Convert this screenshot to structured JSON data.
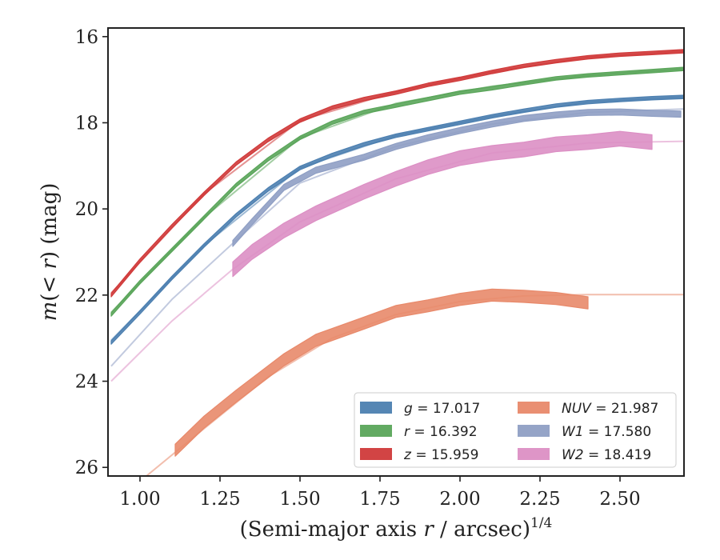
{
  "chart_data": {
    "type": "line",
    "xlabel": "(Semi-major axis r / arcsec)^1/4",
    "ylabel": "m(< r) (mag)",
    "xlim": [
      0.9,
      2.7
    ],
    "ylim": [
      26.2,
      15.8
    ],
    "y_inverted": true,
    "xticks": [
      "1.00",
      "1.25",
      "1.50",
      "1.75",
      "2.00",
      "2.25",
      "2.50"
    ],
    "xtick_values": [
      1.0,
      1.25,
      1.5,
      1.75,
      2.0,
      2.25,
      2.5
    ],
    "yticks": [
      "16",
      "18",
      "20",
      "22",
      "24",
      "26"
    ],
    "ytick_values": [
      16,
      18,
      20,
      22,
      24,
      26
    ],
    "grid": false,
    "legend_position": "lower-right",
    "legend_columns": 2,
    "series": [
      {
        "name": "g = 17.017",
        "band": "g",
        "total_mag": "17.017",
        "color": "#4c7fb0",
        "band_width": 0.08,
        "data": [
          [
            0.91,
            23.1
          ],
          [
            1.0,
            22.4
          ],
          [
            1.1,
            21.6
          ],
          [
            1.2,
            20.85
          ],
          [
            1.3,
            20.15
          ],
          [
            1.4,
            19.55
          ],
          [
            1.5,
            19.05
          ],
          [
            1.6,
            18.75
          ],
          [
            1.7,
            18.5
          ],
          [
            1.8,
            18.3
          ],
          [
            1.9,
            18.15
          ],
          [
            2.0,
            18.0
          ],
          [
            2.1,
            17.85
          ],
          [
            2.2,
            17.72
          ],
          [
            2.3,
            17.6
          ],
          [
            2.4,
            17.52
          ],
          [
            2.5,
            17.47
          ],
          [
            2.6,
            17.43
          ],
          [
            2.7,
            17.4
          ]
        ],
        "model": [
          [
            0.91,
            23.05
          ],
          [
            1.2,
            20.85
          ],
          [
            1.5,
            19.05
          ],
          [
            1.8,
            18.3
          ],
          [
            2.1,
            17.85
          ],
          [
            2.4,
            17.52
          ],
          [
            2.7,
            17.4
          ]
        ]
      },
      {
        "name": "r = 16.392",
        "band": "r",
        "total_mag": "16.392",
        "color": "#5aa55a",
        "band_width": 0.08,
        "data": [
          [
            0.91,
            22.45
          ],
          [
            1.0,
            21.7
          ],
          [
            1.1,
            20.95
          ],
          [
            1.2,
            20.2
          ],
          [
            1.3,
            19.45
          ],
          [
            1.4,
            18.85
          ],
          [
            1.5,
            18.35
          ],
          [
            1.6,
            18.0
          ],
          [
            1.7,
            17.75
          ],
          [
            1.8,
            17.6
          ],
          [
            1.9,
            17.45
          ],
          [
            2.0,
            17.3
          ],
          [
            2.1,
            17.2
          ],
          [
            2.2,
            17.08
          ],
          [
            2.3,
            16.97
          ],
          [
            2.4,
            16.9
          ],
          [
            2.5,
            16.85
          ],
          [
            2.6,
            16.8
          ],
          [
            2.7,
            16.75
          ]
        ],
        "model": [
          [
            0.91,
            22.4
          ],
          [
            1.2,
            20.2
          ],
          [
            1.5,
            18.35
          ],
          [
            1.8,
            17.55
          ],
          [
            2.1,
            17.15
          ],
          [
            2.4,
            16.9
          ],
          [
            2.7,
            16.75
          ]
        ]
      },
      {
        "name": "z = 15.959",
        "band": "z",
        "total_mag": "15.959",
        "color": "#d03a3a",
        "band_width": 0.08,
        "data": [
          [
            0.91,
            22.0
          ],
          [
            1.0,
            21.2
          ],
          [
            1.1,
            20.4
          ],
          [
            1.2,
            19.65
          ],
          [
            1.3,
            18.95
          ],
          [
            1.4,
            18.4
          ],
          [
            1.5,
            17.95
          ],
          [
            1.6,
            17.65
          ],
          [
            1.7,
            17.45
          ],
          [
            1.8,
            17.3
          ],
          [
            1.9,
            17.12
          ],
          [
            2.0,
            16.98
          ],
          [
            2.1,
            16.82
          ],
          [
            2.2,
            16.68
          ],
          [
            2.3,
            16.57
          ],
          [
            2.4,
            16.48
          ],
          [
            2.5,
            16.42
          ],
          [
            2.6,
            16.38
          ],
          [
            2.7,
            16.34
          ]
        ],
        "model": [
          [
            0.91,
            21.95
          ],
          [
            1.2,
            19.65
          ],
          [
            1.5,
            17.95
          ],
          [
            1.8,
            17.28
          ],
          [
            2.1,
            16.82
          ],
          [
            2.4,
            16.48
          ],
          [
            2.7,
            16.34
          ]
        ]
      },
      {
        "name": "NUV = 21.987",
        "band": "NUV",
        "total_mag": "21.987",
        "color": "#e8896a",
        "band_width": 0.28,
        "data": [
          [
            1.11,
            25.6
          ],
          [
            1.2,
            24.95
          ],
          [
            1.3,
            24.35
          ],
          [
            1.45,
            23.5
          ],
          [
            1.55,
            23.05
          ],
          [
            1.7,
            22.65
          ],
          [
            1.8,
            22.38
          ],
          [
            1.9,
            22.25
          ],
          [
            2.0,
            22.1
          ],
          [
            2.1,
            22.0
          ],
          [
            2.2,
            22.03
          ],
          [
            2.3,
            22.08
          ],
          [
            2.4,
            22.18
          ]
        ],
        "model": [
          [
            1.02,
            26.2
          ],
          [
            1.2,
            25.1
          ],
          [
            1.4,
            23.9
          ],
          [
            1.6,
            23.0
          ],
          [
            1.8,
            22.45
          ],
          [
            2.0,
            22.15
          ],
          [
            2.2,
            22.02
          ],
          [
            2.4,
            21.99
          ],
          [
            2.7,
            21.99
          ]
        ]
      },
      {
        "name": "W1 = 17.580",
        "band": "W1",
        "total_mag": "17.580",
        "color": "#8f9fc4",
        "band_width": 0.14,
        "data": [
          [
            1.29,
            20.8
          ],
          [
            1.35,
            20.3
          ],
          [
            1.45,
            19.5
          ],
          [
            1.55,
            19.1
          ],
          [
            1.7,
            18.8
          ],
          [
            1.8,
            18.55
          ],
          [
            1.9,
            18.35
          ],
          [
            2.0,
            18.18
          ],
          [
            2.1,
            18.03
          ],
          [
            2.2,
            17.9
          ],
          [
            2.3,
            17.82
          ],
          [
            2.4,
            17.76
          ],
          [
            2.5,
            17.75
          ],
          [
            2.6,
            17.78
          ],
          [
            2.69,
            17.8
          ]
        ],
        "model": [
          [
            0.91,
            23.65
          ],
          [
            1.1,
            22.1
          ],
          [
            1.29,
            20.8
          ],
          [
            1.5,
            19.4
          ],
          [
            1.8,
            18.55
          ],
          [
            2.1,
            18.03
          ],
          [
            2.4,
            17.76
          ],
          [
            2.7,
            17.68
          ]
        ]
      },
      {
        "name": "W2 = 18.419",
        "band": "W2",
        "total_mag": "18.419",
        "color": "#dc8fc4",
        "band_width": 0.34,
        "data": [
          [
            1.29,
            21.4
          ],
          [
            1.35,
            21.0
          ],
          [
            1.45,
            20.5
          ],
          [
            1.55,
            20.1
          ],
          [
            1.7,
            19.6
          ],
          [
            1.8,
            19.3
          ],
          [
            1.9,
            19.03
          ],
          [
            2.0,
            18.82
          ],
          [
            2.1,
            18.7
          ],
          [
            2.2,
            18.62
          ],
          [
            2.3,
            18.5
          ],
          [
            2.4,
            18.45
          ],
          [
            2.5,
            18.37
          ],
          [
            2.6,
            18.45
          ]
        ],
        "model": [
          [
            0.91,
            24.0
          ],
          [
            1.1,
            22.6
          ],
          [
            1.29,
            21.4
          ],
          [
            1.5,
            20.3
          ],
          [
            1.8,
            19.3
          ],
          [
            2.1,
            18.7
          ],
          [
            2.4,
            18.47
          ],
          [
            2.7,
            18.43
          ]
        ]
      }
    ]
  }
}
